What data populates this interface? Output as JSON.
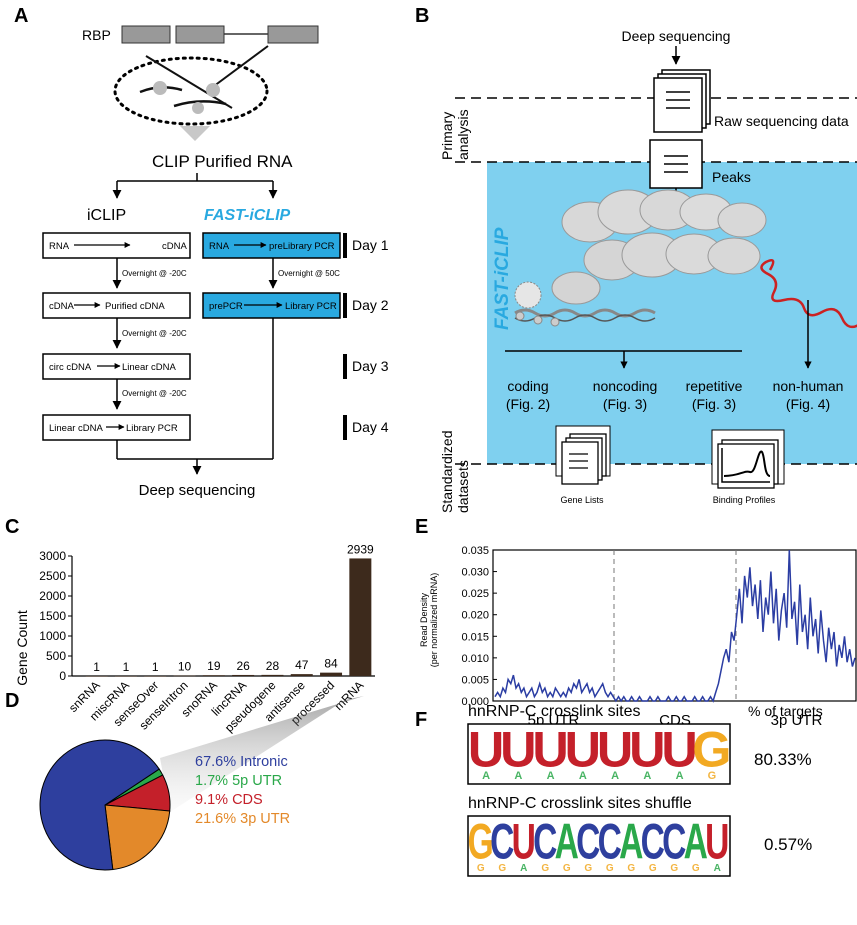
{
  "panels": {
    "a": "A",
    "b": "B",
    "c": "C",
    "d": "D",
    "e": "E",
    "f": "F"
  },
  "panel_a": {
    "rbp": "RBP",
    "clip": "CLIP Purified RNA",
    "iclip": "iCLIP",
    "fast": "FAST-iCLIP",
    "i_row1_l": "RNA",
    "i_row1_r": "cDNA",
    "i_row2_l": "cDNA",
    "i_row2_r": "Purified cDNA",
    "i_row3_l": "circ cDNA",
    "i_row3_r": "Linear cDNA",
    "i_row4_l": "Linear cDNA",
    "i_row4_r": "Library PCR",
    "i_gap1": "Overnight @ -20C",
    "i_gap2": "Overnight @ -20C",
    "i_gap3": "Overnight @ -20C",
    "f_row1_l": "RNA",
    "f_row1_r": "preLibrary PCR",
    "f_row2_l": "prePCR",
    "f_row2_r": "Library PCR",
    "f_gap1": "Overnight @ 50C",
    "day1": "Day 1",
    "day2": "Day 2",
    "day3": "Day 3",
    "day4": "Day 4",
    "deep": "Deep sequencing"
  },
  "panel_b": {
    "deep": "Deep sequencing",
    "primary_1": "Primary",
    "primary_2": "analysis",
    "raw": "Raw sequencing data",
    "peaks": "Peaks",
    "fast": "FAST-iCLIP",
    "coding": "coding",
    "coding_fig": "(Fig. 2)",
    "noncoding": "noncoding",
    "noncoding_fig": "(Fig. 3)",
    "repetitive": "repetitive",
    "repetitive_fig": "(Fig. 3)",
    "nonhuman": "non-human",
    "nonhuman_fig": "(Fig. 4)",
    "std_1": "Standardized",
    "std_2": "datasets",
    "gene_lists": "Gene Lists",
    "binding": "Binding Profiles",
    "bg_color": "#7fd0ef"
  },
  "panel_d": {
    "labels": [
      "67.6% Intronic",
      "1.7% 5p UTR",
      "9.1% CDS",
      "21.6% 3p UTR"
    ],
    "values": [
      67.6,
      1.7,
      9.1,
      21.6
    ],
    "colors": [
      "#2e3f9e",
      "#2aa84a",
      "#c4202a",
      "#e3892a"
    ]
  },
  "panel_f": {
    "title1": "hnRNP-C crosslink sites",
    "title2": "hnRNP-C crosslink sites shuffle",
    "pct_header": "% of targets",
    "pct1": "80.33%",
    "pct2": "0.57%",
    "logo1": "UUUUUUUG",
    "logo2": "GCUCACCACCAU"
  },
  "chart_data": [
    {
      "type": "bar",
      "panel": "C",
      "categories": [
        "snRNA",
        "miscRNA",
        "senseOver",
        "senseIntron",
        "snoRNA",
        "lincRNA",
        "pseudogene",
        "antisense",
        "processed",
        "mRNA"
      ],
      "values": [
        1,
        1,
        1,
        10,
        19,
        26,
        28,
        47,
        84,
        2939
      ],
      "ylabel": "Gene Count",
      "yticks": [
        0,
        500,
        1000,
        1500,
        2000,
        2500,
        3000
      ],
      "ylim": [
        0,
        3000
      ],
      "bar_color": "#3d2a1c"
    },
    {
      "type": "line",
      "panel": "E",
      "ylabel": "Read Density",
      "ylabel2": "(per normalized mRNA)",
      "yticks": [
        "0.000",
        "0.005",
        "0.010",
        "0.015",
        "0.020",
        "0.025",
        "0.030",
        "0.035"
      ],
      "ylim": [
        0,
        0.035
      ],
      "regions": [
        "5p UTR",
        "CDS",
        "3p UTR"
      ],
      "series": [
        {
          "color": "#2b3da3",
          "values": [
            0.001,
            0.002,
            0.001,
            0.003,
            0.002,
            0.005,
            0.004,
            0.006,
            0.003,
            0.004,
            0.002,
            0.003,
            0.001,
            0.002,
            0.003,
            0.001,
            0.002,
            0.004,
            0.002,
            0.003,
            0.001,
            0.002,
            0.001,
            0.003,
            0.002,
            0.001,
            0.002,
            0.001,
            0.003,
            0.002,
            0.004,
            0.003,
            0.005,
            0.002,
            0.003,
            0.004,
            0.002,
            0.003,
            0.001,
            0.002,
            0.003,
            0.004,
            0.002,
            0.001,
            0.002,
            0.001,
            0.0,
            0.001,
            0.0,
            0.001,
            0.0,
            0.0,
            0.001,
            0.0,
            0.0,
            0.001,
            0.0,
            0.0,
            0.0,
            0.001,
            0.0,
            0.0,
            0.001,
            0.0,
            0.0,
            0.0,
            0.001,
            0.0,
            0.0,
            0.001,
            0.0,
            0.0,
            0.001,
            0.0,
            0.0,
            0.0,
            0.001,
            0.0,
            0.0,
            0.001,
            0.0,
            0.0,
            0.001,
            0.0,
            0.002,
            0.004,
            0.007,
            0.01,
            0.012,
            0.009,
            0.016,
            0.014,
            0.02,
            0.026,
            0.018,
            0.029,
            0.024,
            0.031,
            0.022,
            0.027,
            0.019,
            0.028,
            0.016,
            0.024,
            0.02,
            0.03,
            0.018,
            0.026,
            0.014,
            0.021,
            0.025,
            0.017,
            0.035,
            0.019,
            0.023,
            0.013,
            0.027,
            0.016,
            0.02,
            0.012,
            0.024,
            0.015,
            0.019,
            0.011,
            0.021,
            0.014,
            0.009,
            0.017,
            0.012,
            0.016,
            0.008,
            0.013,
            0.01,
            0.015,
            0.009,
            0.012,
            0.008,
            0.01
          ]
        }
      ]
    }
  ]
}
